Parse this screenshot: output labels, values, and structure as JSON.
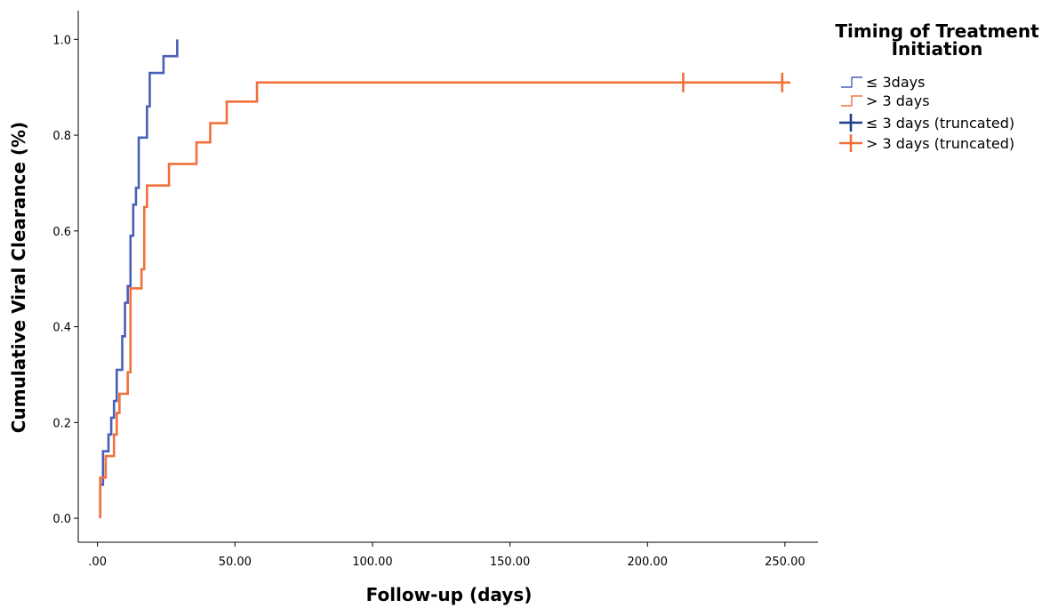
{
  "chart_data": {
    "type": "line",
    "title": "",
    "xlabel": "Follow-up (days)",
    "ylabel": "Cumulative Viral Clearance (%)",
    "xlim": [
      -7,
      262
    ],
    "ylim": [
      -0.05,
      1.06
    ],
    "x_ticks": [
      {
        "value": 0,
        "label": ".00"
      },
      {
        "value": 50,
        "label": "50.00"
      },
      {
        "value": 100,
        "label": "100.00"
      },
      {
        "value": 150,
        "label": "150.00"
      },
      {
        "value": 200,
        "label": "200.00"
      },
      {
        "value": 250,
        "label": "250.00"
      }
    ],
    "y_ticks": [
      {
        "value": 0.0,
        "label": "0.0"
      },
      {
        "value": 0.2,
        "label": "0.2"
      },
      {
        "value": 0.4,
        "label": "0.4"
      },
      {
        "value": 0.6,
        "label": "0.6"
      },
      {
        "value": 0.8,
        "label": "0.8"
      },
      {
        "value": 1.0,
        "label": "1.0"
      }
    ],
    "grid": false,
    "legend": {
      "title": "Timing of Treatment Initiation",
      "title_lines": [
        "Timing of Treatment",
        "Initiation"
      ],
      "position": "top-right",
      "entries": [
        "≤ 3days",
        "> 3 days",
        "≤ 3 days (truncated)",
        "> 3 days (truncated)"
      ]
    },
    "series": [
      {
        "name": "≤ 3days",
        "color": "#4a60b8",
        "step": true,
        "points": [
          [
            1,
            0
          ],
          [
            1,
            0.07
          ],
          [
            2,
            0.07
          ],
          [
            2,
            0.14
          ],
          [
            4,
            0.14
          ],
          [
            4,
            0.175
          ],
          [
            5,
            0.175
          ],
          [
            5,
            0.21
          ],
          [
            6,
            0.21
          ],
          [
            6,
            0.245
          ],
          [
            7,
            0.245
          ],
          [
            7,
            0.31
          ],
          [
            9,
            0.31
          ],
          [
            9,
            0.38
          ],
          [
            10,
            0.38
          ],
          [
            10,
            0.45
          ],
          [
            11,
            0.45
          ],
          [
            11,
            0.485
          ],
          [
            12,
            0.485
          ],
          [
            12,
            0.59
          ],
          [
            13,
            0.59
          ],
          [
            13,
            0.655
          ],
          [
            14,
            0.655
          ],
          [
            14,
            0.69
          ],
          [
            15,
            0.69
          ],
          [
            15,
            0.795
          ],
          [
            18,
            0.795
          ],
          [
            18,
            0.86
          ],
          [
            19,
            0.86
          ],
          [
            19,
            0.93
          ],
          [
            24,
            0.93
          ],
          [
            24,
            0.965
          ],
          [
            29,
            0.965
          ],
          [
            29,
            1.0
          ]
        ],
        "censored": []
      },
      {
        "name": "> 3 days",
        "color": "#f0703a",
        "step": true,
        "points": [
          [
            1,
            0
          ],
          [
            1,
            0.085
          ],
          [
            3,
            0.085
          ],
          [
            3,
            0.13
          ],
          [
            6,
            0.13
          ],
          [
            6,
            0.175
          ],
          [
            7,
            0.175
          ],
          [
            7,
            0.22
          ],
          [
            8,
            0.22
          ],
          [
            8,
            0.26
          ],
          [
            11,
            0.26
          ],
          [
            11,
            0.305
          ],
          [
            12,
            0.305
          ],
          [
            12,
            0.48
          ],
          [
            16,
            0.48
          ],
          [
            16,
            0.52
          ],
          [
            17,
            0.52
          ],
          [
            17,
            0.65
          ],
          [
            18,
            0.65
          ],
          [
            18,
            0.695
          ],
          [
            26,
            0.695
          ],
          [
            26,
            0.74
          ],
          [
            36,
            0.74
          ],
          [
            36,
            0.785
          ],
          [
            41,
            0.785
          ],
          [
            41,
            0.825
          ],
          [
            47,
            0.825
          ],
          [
            47,
            0.87
          ],
          [
            58,
            0.87
          ],
          [
            58,
            0.91
          ],
          [
            252,
            0.91
          ]
        ],
        "censored": [
          [
            213,
            0.91
          ],
          [
            249,
            0.91
          ]
        ]
      }
    ]
  }
}
